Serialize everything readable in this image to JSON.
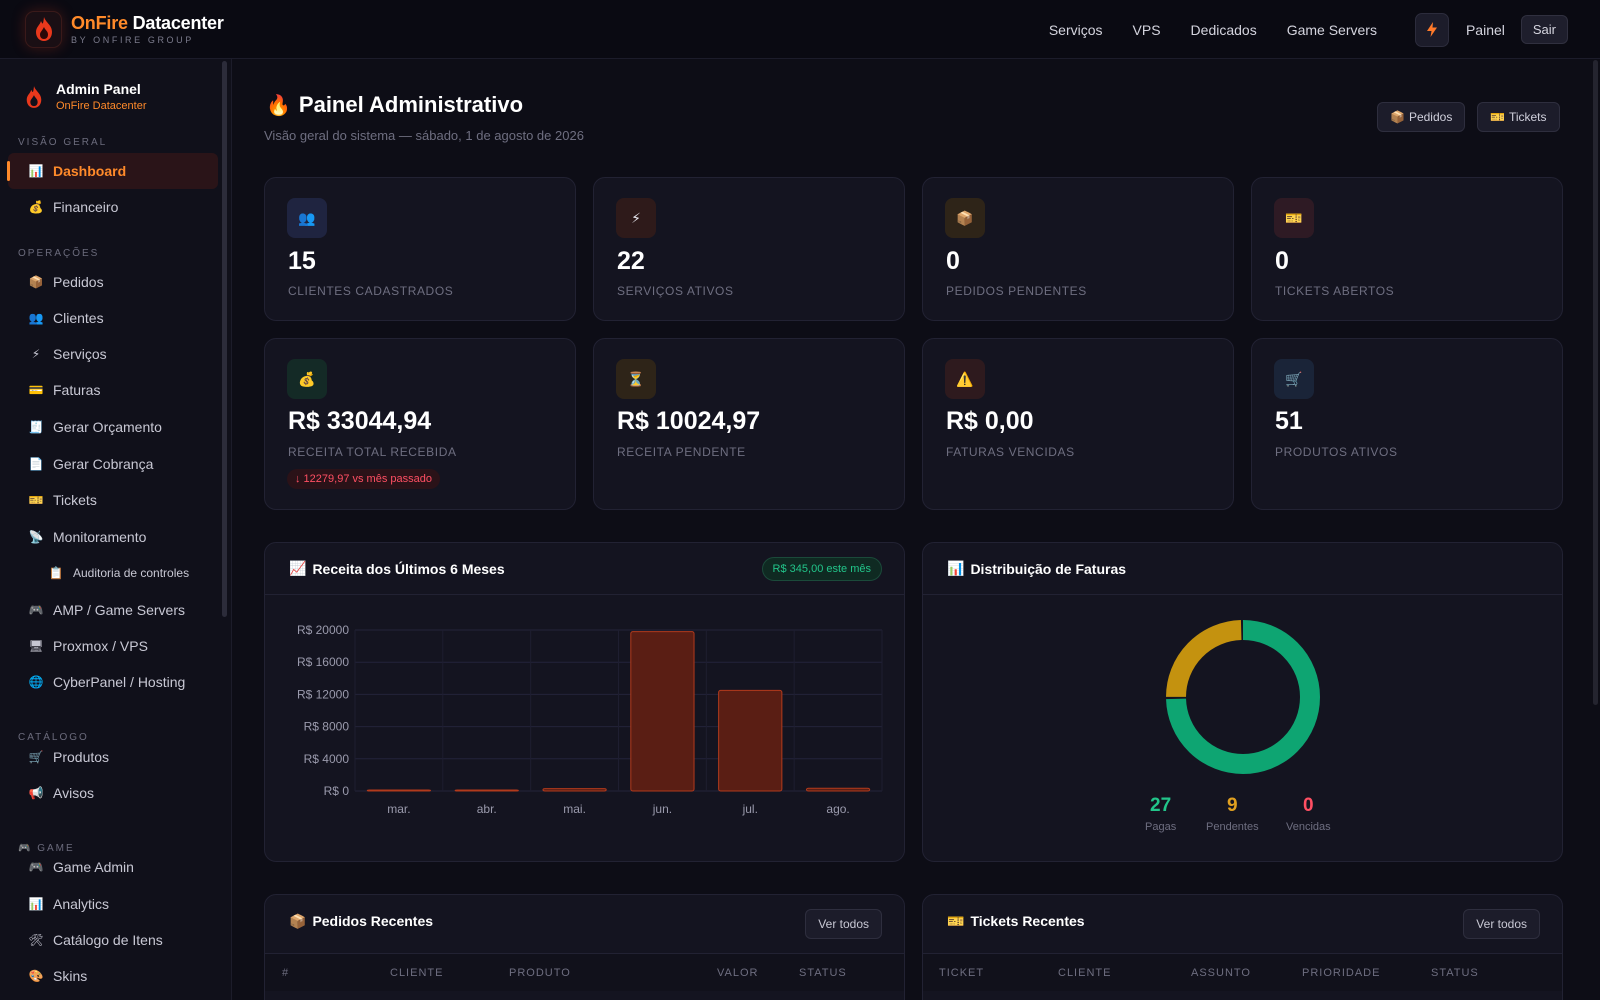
{
  "brand": {
    "name_on": "OnFire",
    "name_rest": " Datacenter",
    "sub": "BY ONFIRE GROUP"
  },
  "topnav": {
    "links": [
      "Serviços",
      "VPS",
      "Dedicados",
      "Game Servers"
    ],
    "painel": "Painel",
    "sair": "Sair"
  },
  "sidebar": {
    "admin_title": "Admin Panel",
    "admin_sub": "OnFire Datacenter",
    "sections": {
      "visao": "VISÃO GERAL",
      "operacoes": "OPERAÇÕES",
      "catalogo": "CATÁLOGO",
      "game": "GAME"
    },
    "items": {
      "dashboard": "Dashboard",
      "financeiro": "Financeiro",
      "pedidos": "Pedidos",
      "clientes": "Clientes",
      "servicos": "Serviços",
      "faturas": "Faturas",
      "gerar_orcamento": "Gerar Orçamento",
      "gerar_cobranca": "Gerar Cobrança",
      "tickets": "Tickets",
      "monitoramento": "Monitoramento",
      "auditoria": "Auditoria de controles",
      "amp": "AMP / Game Servers",
      "proxmox": "Proxmox / VPS",
      "cyberpanel": "CyberPanel / Hosting",
      "produtos": "Produtos",
      "avisos": "Avisos",
      "game_admin": "Game Admin",
      "analytics": "Analytics",
      "catalogo_itens": "Catálogo de Itens",
      "skins": "Skins"
    }
  },
  "header": {
    "title": "Painel Administrativo",
    "subtitle": "Visão geral do sistema — sábado, 1 de agosto de 2026",
    "btn_pedidos": "Pedidos",
    "btn_tickets": "Tickets"
  },
  "stats": {
    "clientes": {
      "value": "15",
      "label": "CLIENTES CADASTRADOS"
    },
    "servicos": {
      "value": "22",
      "label": "SERVIÇOS ATIVOS"
    },
    "pedidos": {
      "value": "0",
      "label": "PEDIDOS PENDENTES"
    },
    "tickets": {
      "value": "0",
      "label": "TICKETS ABERTOS"
    },
    "receita_total": {
      "value": "R$ 33044,94",
      "label": "RECEITA TOTAL RECEBIDA",
      "badge": "↓ 12279,97 vs mês passado"
    },
    "receita_pendente": {
      "value": "R$ 10024,97",
      "label": "RECEITA PENDENTE"
    },
    "faturas_vencidas": {
      "value": "R$ 0,00",
      "label": "FATURAS VENCIDAS"
    },
    "produtos": {
      "value": "51",
      "label": "PRODUTOS ATIVOS"
    }
  },
  "revenue_panel": {
    "title": "Receita dos Últimos 6 Meses",
    "badge": "R$ 345,00 este mês"
  },
  "invoice_panel": {
    "title": "Distribuição de Faturas",
    "pagas_value": "27",
    "pagas_label": "Pagas",
    "pendentes_value": "9",
    "pendentes_label": "Pendentes",
    "vencidas_value": "0",
    "vencidas_label": "Vencidas"
  },
  "orders_panel": {
    "title": "Pedidos Recentes",
    "ver_todos": "Ver todos",
    "columns": [
      "#",
      "CLIENTE",
      "PRODUTO",
      "VALOR",
      "STATUS"
    ]
  },
  "tickets_panel": {
    "title": "Tickets Recentes",
    "ver_todos": "Ver todos",
    "columns": [
      "TICKET",
      "CLIENTE",
      "ASSUNTO",
      "PRIORIDADE",
      "STATUS"
    ]
  },
  "colors": {
    "accent": "#ff8a2a",
    "bar_fill": "#5a1e14",
    "bar_stroke": "#b23a1c",
    "green": "#0ea572",
    "amber": "#c4920f",
    "red": "#ff4f63"
  },
  "chart_data": [
    {
      "type": "bar",
      "categories": [
        "mar.",
        "abr.",
        "mai.",
        "jun.",
        "jul.",
        "ago."
      ],
      "values": [
        0,
        0,
        300,
        19800,
        12500,
        345
      ],
      "ylim": [
        0,
        20000
      ],
      "yticks": [
        "R$ 0",
        "R$ 4000",
        "R$ 8000",
        "R$ 12000",
        "R$ 16000",
        "R$ 20000"
      ],
      "ytick_values": [
        0,
        4000,
        8000,
        12000,
        16000,
        20000
      ],
      "grid": true
    },
    {
      "type": "pie",
      "labels": [
        "Pagas",
        "Pendentes",
        "Vencidas"
      ],
      "values": [
        27,
        9,
        0
      ],
      "colors": [
        "#0ea572",
        "#c4920f",
        "#ff4f63"
      ]
    }
  ]
}
